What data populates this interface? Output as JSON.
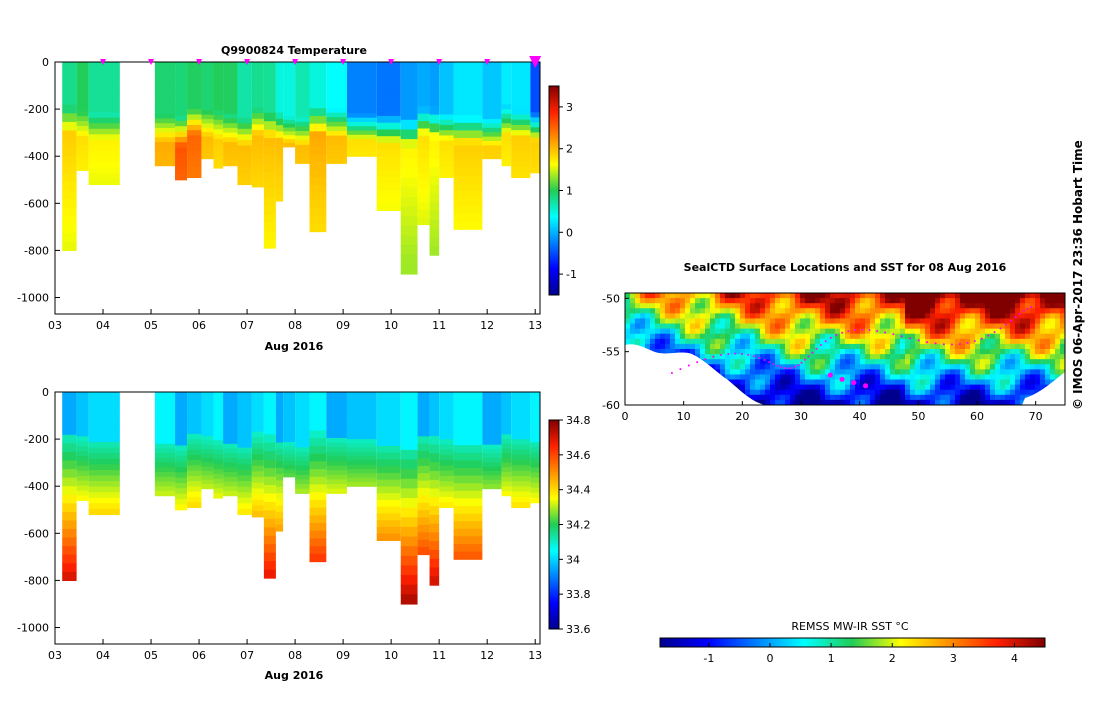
{
  "chart_data": [
    {
      "type": "heatmap",
      "title": "Q9900824  Temperature",
      "xlabel": "Aug 2016",
      "x_ticks": [
        "03",
        "04",
        "05",
        "06",
        "07",
        "08",
        "09",
        "10",
        "11",
        "12",
        "13"
      ],
      "y_ticks": [
        "0",
        "-200",
        "-400",
        "-600",
        "-800",
        "-1000"
      ],
      "ylim": [
        -1070,
        0
      ],
      "xlim": [
        3.0,
        13.1
      ],
      "colorbar": {
        "ticks": [
          "-1",
          "0",
          "1",
          "2",
          "3"
        ],
        "range": [
          -1.5,
          3.5
        ]
      },
      "profile_markers_x": [
        4,
        5,
        6,
        7,
        8,
        9,
        10,
        11,
        12,
        13
      ],
      "profiles": [
        {
          "x0": 3.15,
          "x1": 3.45,
          "bottom": -800,
          "surface": 0.8,
          "deep": 1.6
        },
        {
          "x0": 3.45,
          "x1": 3.7,
          "bottom": -460,
          "surface": 0.9,
          "deep": 1.5
        },
        {
          "x0": 3.7,
          "x1": 4.35,
          "bottom": -520,
          "surface": 0.6,
          "deep": 1.4
        },
        {
          "x0": 5.08,
          "x1": 5.5,
          "bottom": -440,
          "surface": 0.9,
          "deep": 1.8
        },
        {
          "x0": 5.5,
          "x1": 5.75,
          "bottom": -500,
          "surface": 0.8,
          "deep": 2.3
        },
        {
          "x0": 5.75,
          "x1": 6.05,
          "bottom": -490,
          "surface": 0.8,
          "deep": 2.2
        },
        {
          "x0": 6.05,
          "x1": 6.3,
          "bottom": -410,
          "surface": 0.9,
          "deep": 1.7
        },
        {
          "x0": 6.3,
          "x1": 6.5,
          "bottom": -450,
          "surface": 0.9,
          "deep": 1.6
        },
        {
          "x0": 6.5,
          "x1": 6.8,
          "bottom": -440,
          "surface": 0.8,
          "deep": 1.7
        },
        {
          "x0": 6.8,
          "x1": 7.1,
          "bottom": -520,
          "surface": 0.7,
          "deep": 1.7
        },
        {
          "x0": 7.1,
          "x1": 7.35,
          "bottom": -530,
          "surface": 0.7,
          "deep": 1.7
        },
        {
          "x0": 7.35,
          "x1": 7.6,
          "bottom": -790,
          "surface": 0.6,
          "deep": 1.7
        },
        {
          "x0": 7.6,
          "x1": 7.75,
          "bottom": -590,
          "surface": 0.5,
          "deep": 1.7
        },
        {
          "x0": 7.75,
          "x1": 8.0,
          "bottom": -360,
          "surface": 0.4,
          "deep": 1.7
        },
        {
          "x0": 8.0,
          "x1": 8.3,
          "bottom": -430,
          "surface": 0.5,
          "deep": 1.7
        },
        {
          "x0": 8.3,
          "x1": 8.65,
          "bottom": -720,
          "surface": 0.5,
          "deep": 1.8
        },
        {
          "x0": 8.65,
          "x1": 9.08,
          "bottom": -430,
          "surface": 0.3,
          "deep": 1.7
        },
        {
          "x0": 9.08,
          "x1": 9.7,
          "bottom": -400,
          "surface": -0.4,
          "deep": 1.5
        },
        {
          "x0": 9.7,
          "x1": 10.2,
          "bottom": -630,
          "surface": -0.3,
          "deep": 1.5
        },
        {
          "x0": 10.2,
          "x1": 10.55,
          "bottom": -900,
          "surface": -0.2,
          "deep": 1.4
        },
        {
          "x0": 10.55,
          "x1": 10.8,
          "bottom": -690,
          "surface": -0.2,
          "deep": 1.5
        },
        {
          "x0": 10.8,
          "x1": 11.0,
          "bottom": -820,
          "surface": -0.1,
          "deep": 1.4
        },
        {
          "x0": 11.0,
          "x1": 11.3,
          "bottom": -490,
          "surface": 0.0,
          "deep": 1.5
        },
        {
          "x0": 11.3,
          "x1": 11.9,
          "bottom": -710,
          "surface": 0.1,
          "deep": 1.6
        },
        {
          "x0": 11.9,
          "x1": 12.3,
          "bottom": -410,
          "surface": 0.1,
          "deep": 1.6
        },
        {
          "x0": 12.3,
          "x1": 12.5,
          "bottom": -440,
          "surface": 0.2,
          "deep": 1.5
        },
        {
          "x0": 12.5,
          "x1": 12.9,
          "bottom": -490,
          "surface": 0.1,
          "deep": 1.6
        },
        {
          "x0": 12.9,
          "x1": 13.1,
          "bottom": -470,
          "surface": -0.5,
          "deep": 1.6
        }
      ]
    },
    {
      "type": "heatmap",
      "title": "",
      "xlabel": "Aug 2016",
      "x_ticks": [
        "03",
        "04",
        "05",
        "06",
        "07",
        "08",
        "09",
        "10",
        "11",
        "12",
        "13"
      ],
      "y_ticks": [
        "0",
        "-200",
        "-400",
        "-600",
        "-800",
        "-1000"
      ],
      "ylim": [
        -1070,
        0
      ],
      "xlim": [
        3.0,
        13.1
      ],
      "colorbar": {
        "ticks": [
          "34.8",
          "34.6",
          "34.4",
          "34.2",
          "34",
          "33.8",
          "33.6"
        ],
        "range": [
          33.6,
          34.8
        ]
      },
      "note_profiles": "same casts as temperature panel"
    },
    {
      "type": "heatmap",
      "title": "SealCTD Surface Locations and SST for 08 Aug 2016",
      "x_ticks": [
        "0",
        "10",
        "20",
        "30",
        "40",
        "50",
        "60",
        "70"
      ],
      "y_ticks": [
        "-50",
        "-55",
        "-60"
      ],
      "xlim": [
        0,
        75
      ],
      "ylim": [
        -60,
        -49.5
      ],
      "colorbar": {
        "label": "REMSS MW-IR SST °C",
        "ticks": [
          "-1",
          "0",
          "1",
          "2",
          "3",
          "4"
        ],
        "range": [
          -1.8,
          4.5
        ]
      }
    }
  ],
  "side_label": "© IMOS 06-Apr-2017 23:36 Hobart Time",
  "colors": {
    "marker": "#ff00ff",
    "axis": "#000000"
  }
}
